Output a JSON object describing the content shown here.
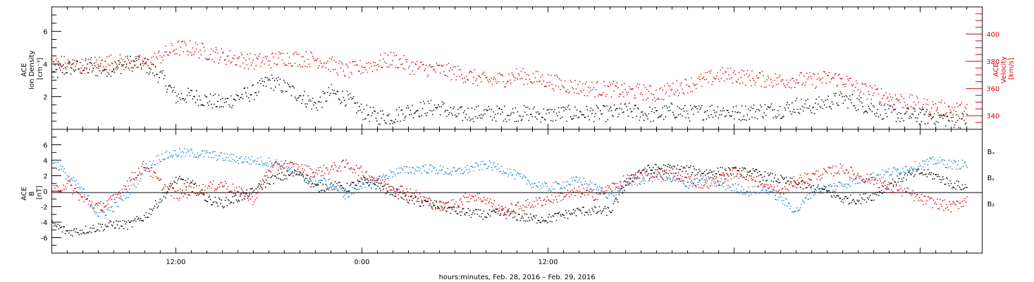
{
  "colors": {
    "black": "#000000",
    "red": "#e00000",
    "blue": "#1f86d6"
  },
  "chart_data": [
    {
      "type": "scatter",
      "panel": "top",
      "ylabel_left_lines": [
        "ACE",
        "Ion Density",
        "[cm⁻³]"
      ],
      "ylabel_right_lines": [
        "ACE",
        "Velocity",
        "[km/s]"
      ],
      "ylim_left": [
        0,
        7.5
      ],
      "yticks_left": [
        "2",
        "4",
        "6"
      ],
      "ylim_right": [
        330,
        420
      ],
      "yticks_right": [
        "340",
        "360",
        "380",
        "400"
      ],
      "x_unit": "hours from Feb. 28, 2016 00:00",
      "xlim": [
        4,
        64
      ],
      "series": [
        {
          "color": "#000000",
          "axis": "left",
          "x": [
            4,
            5,
            6,
            7,
            8,
            9,
            10,
            11,
            12,
            13,
            14,
            15,
            16,
            17,
            18,
            19,
            20,
            21,
            22,
            23,
            24,
            25,
            26,
            27,
            28,
            29,
            30,
            31,
            32,
            33,
            34,
            35,
            36,
            37,
            38,
            39,
            40,
            41,
            42,
            43,
            44,
            45,
            46,
            47,
            48,
            49,
            50,
            51,
            52,
            53,
            54,
            55,
            56,
            57,
            58,
            59,
            60,
            61,
            62,
            63
          ],
          "values": [
            3.4,
            3.8,
            3.8,
            3.7,
            3.8,
            4.1,
            4.0,
            3.3,
            2.0,
            2.1,
            1.8,
            1.6,
            2.0,
            2.3,
            3.0,
            2.6,
            2.1,
            1.5,
            2.3,
            1.9,
            1.1,
            0.8,
            0.8,
            1.2,
            1.3,
            1.4,
            0.9,
            1.0,
            1.0,
            1.0,
            1.0,
            1.0,
            0.9,
            1.0,
            1.0,
            1.0,
            1.0,
            1.2,
            1.0,
            0.9,
            1.2,
            1.0,
            1.1,
            1.2,
            1.0,
            1.1,
            1.2,
            1.2,
            1.5,
            1.4,
            1.7,
            1.9,
            1.6,
            1.3,
            1.0,
            0.9,
            0.8,
            0.8,
            0.6,
            0.6
          ],
          "noise": 0.5
        },
        {
          "color": "#e00000",
          "axis": "right",
          "x": [
            4,
            5,
            6,
            7,
            8,
            9,
            10,
            11,
            12,
            13,
            14,
            15,
            16,
            17,
            18,
            19,
            20,
            21,
            22,
            23,
            24,
            25,
            26,
            27,
            28,
            29,
            30,
            31,
            32,
            33,
            34,
            35,
            36,
            37,
            38,
            39,
            40,
            41,
            42,
            43,
            44,
            45,
            46,
            47,
            48,
            49,
            50,
            51,
            52,
            53,
            54,
            55,
            56,
            57,
            58,
            59,
            60,
            61,
            62,
            63
          ],
          "values": [
            380,
            378,
            377,
            379,
            380,
            379,
            378,
            384,
            390,
            390,
            387,
            384,
            382,
            380,
            381,
            383,
            382,
            382,
            378,
            373,
            376,
            379,
            382,
            377,
            375,
            374,
            372,
            369,
            366,
            367,
            370,
            368,
            366,
            363,
            361,
            360,
            360,
            358,
            358,
            356,
            360,
            363,
            366,
            370,
            370,
            368,
            367,
            366,
            367,
            366,
            368,
            367,
            360,
            357,
            354,
            351,
            348,
            346,
            345,
            344
          ],
          "noise": 6
        }
      ]
    },
    {
      "type": "scatter",
      "panel": "bottom",
      "ylabel_lines": [
        "ACE",
        "B",
        "[nT]"
      ],
      "ylim": [
        -8,
        8
      ],
      "yticks": [
        "-6",
        "-4",
        "-2",
        "0",
        "2",
        "4",
        "6"
      ],
      "x_unit": "hours from Feb. 28, 2016 00:00",
      "xlim": [
        4,
        64
      ],
      "legend": [
        "Bₓ",
        "Bᵧ",
        "B₂"
      ],
      "series": [
        {
          "color": "#000000",
          "x": [
            4,
            5,
            6,
            7,
            8,
            9,
            10,
            11,
            12,
            13,
            14,
            15,
            16,
            17,
            18,
            19,
            20,
            21,
            22,
            23,
            24,
            25,
            26,
            27,
            28,
            29,
            30,
            31,
            32,
            33,
            34,
            35,
            36,
            37,
            38,
            39,
            40,
            41,
            42,
            43,
            44,
            45,
            46,
            47,
            48,
            49,
            50,
            51,
            52,
            53,
            54,
            55,
            56,
            57,
            58,
            59,
            60,
            61,
            62,
            63
          ],
          "values": [
            -4.2,
            -5.2,
            -5.0,
            -4.6,
            -4.2,
            -4.3,
            -3.2,
            -1.0,
            1.5,
            1.0,
            -1.0,
            -1.5,
            -0.8,
            0.0,
            1.5,
            2.0,
            2.5,
            0.5,
            0.8,
            0.5,
            1.3,
            0.8,
            0.0,
            -1.0,
            -1.5,
            -1.8,
            -2.5,
            -2.8,
            -3.0,
            -2.8,
            -3.2,
            -3.5,
            -3.5,
            -3.0,
            -2.5,
            -2.5,
            -2.5,
            1.0,
            2.8,
            3.0,
            3.0,
            2.8,
            2.5,
            2.6,
            2.6,
            2.5,
            2.0,
            1.5,
            1.0,
            0.5,
            0.0,
            -1.0,
            -1.0,
            -0.5,
            1.0,
            2.0,
            2.5,
            2.0,
            1.0,
            0.5
          ],
          "noise": 0.6
        },
        {
          "color": "#1f86d6",
          "x": [
            4,
            5,
            6,
            7,
            8,
            9,
            10,
            11,
            12,
            13,
            14,
            15,
            16,
            17,
            18,
            19,
            20,
            21,
            22,
            23,
            24,
            25,
            26,
            27,
            28,
            29,
            30,
            31,
            32,
            33,
            34,
            35,
            36,
            37,
            38,
            39,
            40,
            41,
            42,
            43,
            44,
            45,
            46,
            47,
            48,
            49,
            50,
            51,
            52,
            53,
            54,
            55,
            56,
            57,
            58,
            59,
            60,
            61,
            62,
            63
          ],
          "values": [
            4.2,
            2.0,
            0.0,
            -3.0,
            -2.0,
            0.0,
            3.0,
            4.5,
            5.0,
            5.0,
            4.8,
            4.5,
            4.2,
            4.0,
            3.8,
            3.5,
            2.0,
            1.5,
            1.0,
            -0.5,
            1.0,
            1.5,
            2.5,
            2.8,
            3.0,
            2.8,
            2.5,
            3.0,
            3.5,
            3.0,
            2.0,
            1.0,
            0.5,
            1.0,
            1.5,
            0.5,
            -0.5,
            1.0,
            1.5,
            2.0,
            1.5,
            1.0,
            1.5,
            1.0,
            0.5,
            0.0,
            0.5,
            -1.0,
            -2.5,
            0.0,
            0.5,
            1.0,
            1.5,
            2.0,
            2.5,
            3.0,
            3.5,
            4.0,
            3.5,
            3.5
          ],
          "noise": 0.6
        },
        {
          "color": "#e00000",
          "x": [
            4,
            5,
            6,
            7,
            8,
            9,
            10,
            11,
            12,
            13,
            14,
            15,
            16,
            17,
            18,
            19,
            20,
            21,
            22,
            23,
            24,
            25,
            26,
            27,
            28,
            29,
            30,
            31,
            32,
            33,
            34,
            35,
            36,
            37,
            38,
            39,
            40,
            41,
            42,
            43,
            44,
            45,
            46,
            47,
            48,
            49,
            50,
            51,
            52,
            53,
            54,
            55,
            56,
            57,
            58,
            59,
            60,
            61,
            62,
            63
          ],
          "values": [
            0.0,
            1.0,
            -1.0,
            -2.0,
            -1.0,
            1.5,
            3.5,
            1.0,
            -0.5,
            0.0,
            0.5,
            1.0,
            0.0,
            -1.0,
            3.0,
            3.5,
            3.0,
            2.5,
            3.0,
            3.5,
            2.5,
            1.5,
            0.5,
            0.0,
            -1.0,
            -2.0,
            -1.5,
            -0.5,
            -1.0,
            -2.5,
            -2.0,
            -1.5,
            -1.0,
            -0.5,
            0.0,
            -0.5,
            0.5,
            1.5,
            2.0,
            2.5,
            2.0,
            1.5,
            1.0,
            1.5,
            2.5,
            2.0,
            0.5,
            0.0,
            1.5,
            2.0,
            2.5,
            3.0,
            2.0,
            1.5,
            0.5,
            0.0,
            -1.0,
            -1.5,
            -2.0,
            -1.0
          ],
          "noise": 0.7
        }
      ]
    }
  ],
  "x_axis": {
    "tick_labels": [
      {
        "hour": 12,
        "label": "12:00"
      },
      {
        "hour": 24,
        "label": "0:00"
      },
      {
        "hour": 36,
        "label": "12:00"
      }
    ],
    "title": "hours:minutes, Feb. 28, 2016 – Feb. 29, 2016"
  }
}
